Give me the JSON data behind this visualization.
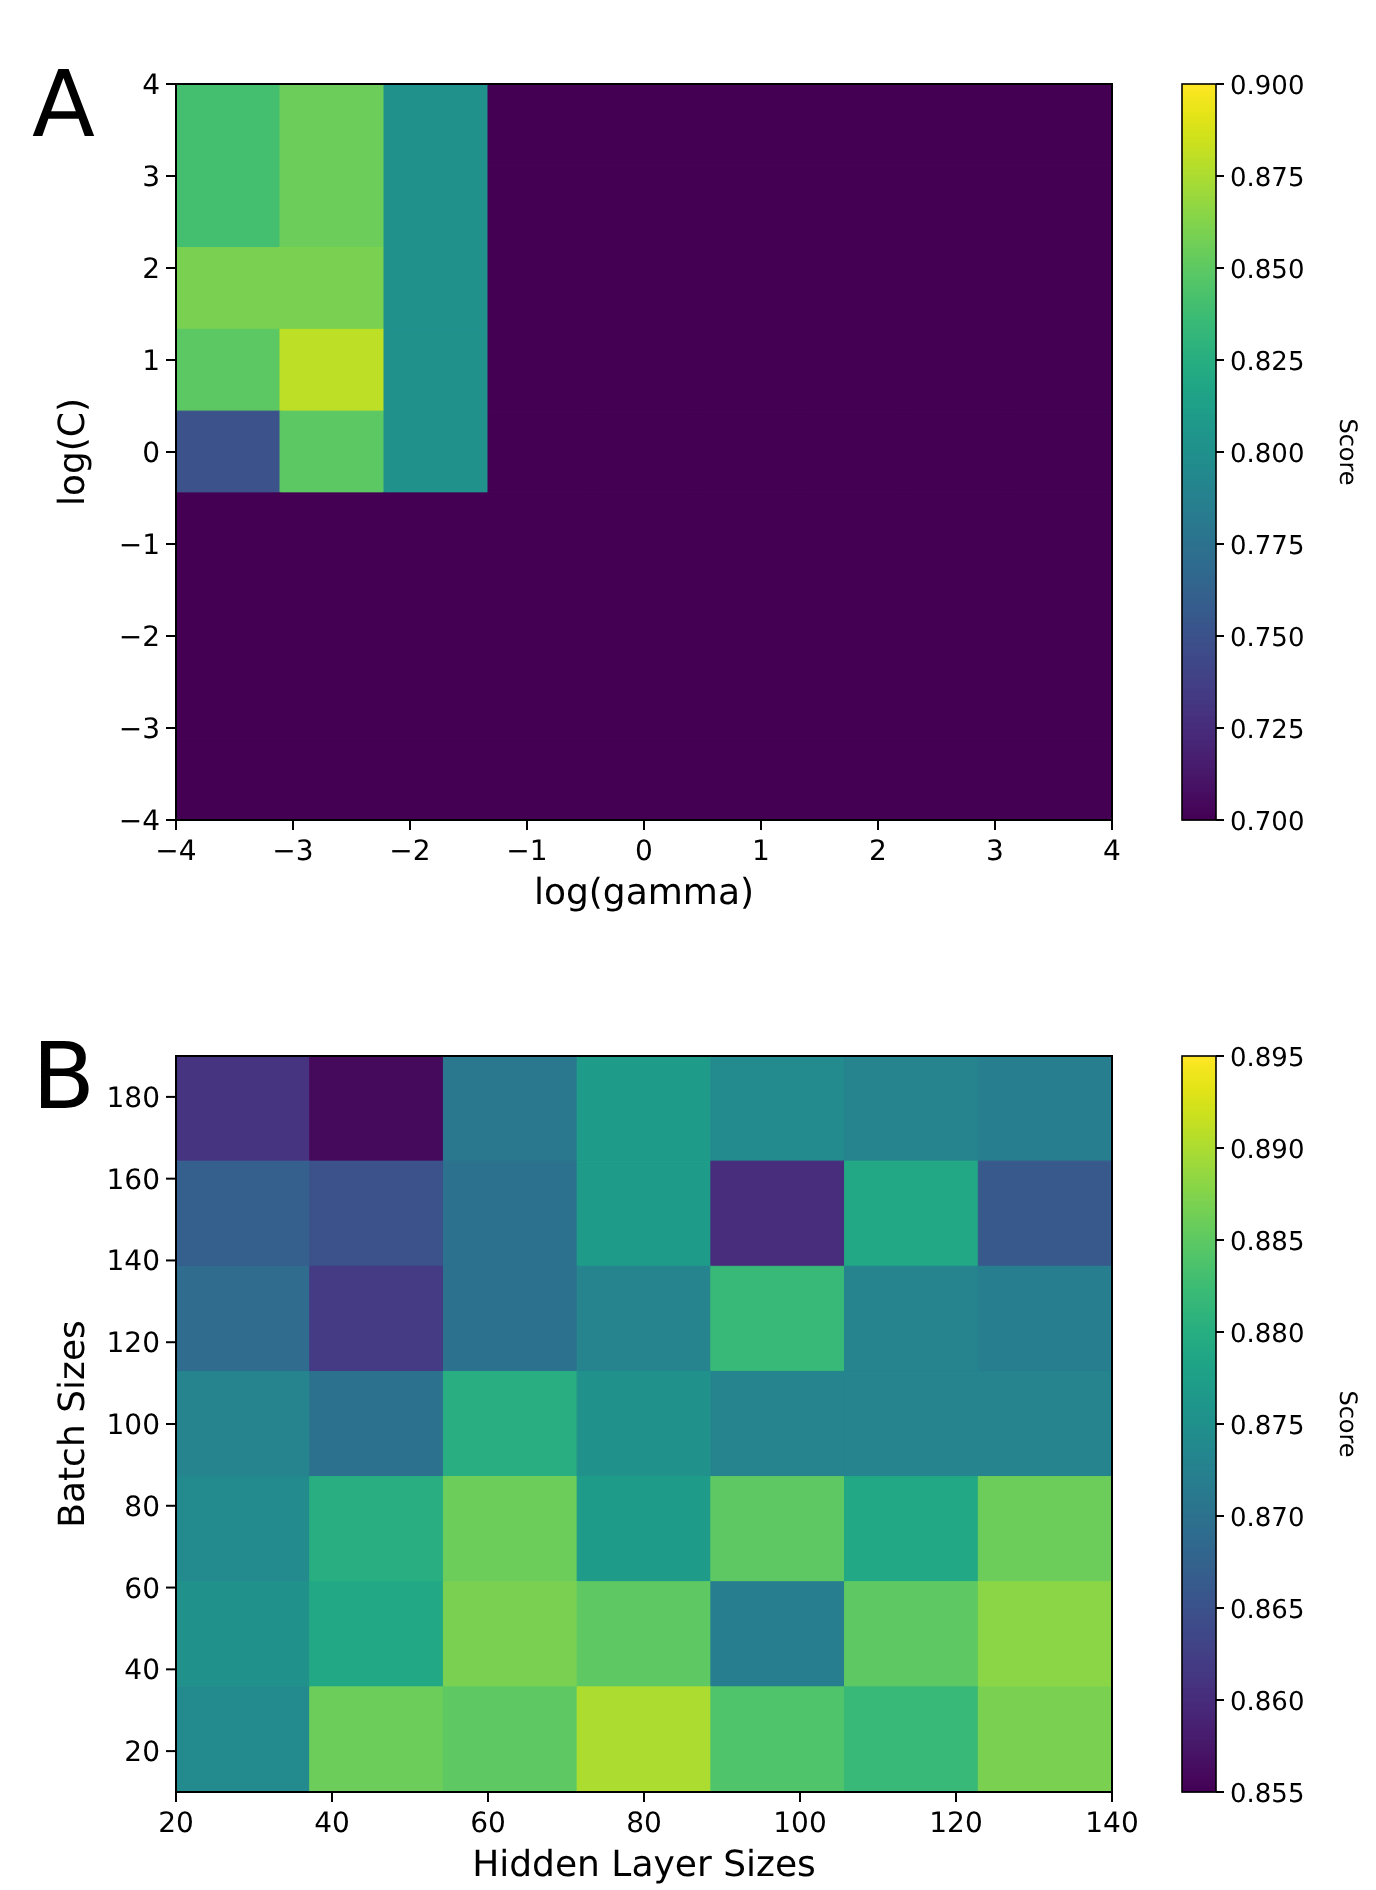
{
  "chart_data": [
    {
      "type": "heatmap",
      "xlabel": "log(gamma)",
      "ylabel": "log(C)",
      "clabel": "Score",
      "annotations": [
        "A"
      ],
      "cells": [
        [
          0.84,
          0.855,
          0.8,
          0.7,
          0.7,
          0.7,
          0.7,
          0.7,
          0.7
        ],
        [
          0.84,
          0.855,
          0.8,
          0.7,
          0.7,
          0.7,
          0.7,
          0.7,
          0.7
        ],
        [
          0.86,
          0.86,
          0.8,
          0.7,
          0.7,
          0.7,
          0.7,
          0.7,
          0.7
        ],
        [
          0.85,
          0.88,
          0.8,
          0.7,
          0.7,
          0.7,
          0.7,
          0.7,
          0.7
        ],
        [
          0.75,
          0.85,
          0.8,
          0.7,
          0.7,
          0.7,
          0.7,
          0.7,
          0.7
        ],
        [
          0.7,
          0.7,
          0.7,
          0.7,
          0.7,
          0.7,
          0.7,
          0.7,
          0.7
        ],
        [
          0.7,
          0.7,
          0.7,
          0.7,
          0.7,
          0.7,
          0.7,
          0.7,
          0.7
        ],
        [
          0.7,
          0.7,
          0.7,
          0.7,
          0.7,
          0.7,
          0.7,
          0.7,
          0.7
        ],
        [
          0.7,
          0.7,
          0.7,
          0.7,
          0.7,
          0.7,
          0.7,
          0.7,
          0.7
        ]
      ],
      "xlim": [
        -4,
        4
      ],
      "ylim": [
        -4,
        4
      ],
      "xticks": [
        {
          "value": -4,
          "label": "−4"
        },
        {
          "value": -3,
          "label": "−3"
        },
        {
          "value": -2,
          "label": "−2"
        },
        {
          "value": -1,
          "label": "−1"
        },
        0,
        1,
        2,
        3,
        4
      ],
      "yticks": [
        {
          "value": -4,
          "label": "−4"
        },
        {
          "value": -3,
          "label": "−3"
        },
        {
          "value": -2,
          "label": "−2"
        },
        {
          "value": -1,
          "label": "−1"
        },
        0,
        1,
        2,
        3,
        4
      ],
      "clim": [
        0.7,
        0.9
      ],
      "cticks": [
        {
          "value": 0.7,
          "label": "0.700"
        },
        0.725,
        {
          "value": 0.75,
          "label": "0.750"
        },
        0.775,
        {
          "value": 0.8,
          "label": "0.800"
        },
        0.825,
        {
          "value": 0.85,
          "label": "0.850"
        },
        0.875,
        {
          "value": 0.9,
          "label": "0.900"
        }
      ]
    },
    {
      "type": "heatmap",
      "xlabel": "Hidden Layer Sizes",
      "ylabel": "Batch Sizes",
      "clabel": "Score",
      "annotations": [
        "B"
      ],
      "cells": [
        [
          0.861,
          0.856,
          0.871,
          0.877,
          0.874,
          0.873,
          0.872
        ],
        [
          0.867,
          0.865,
          0.87,
          0.877,
          0.86,
          0.879,
          0.866
        ],
        [
          0.869,
          0.862,
          0.87,
          0.873,
          0.882,
          0.873,
          0.872
        ],
        [
          0.873,
          0.87,
          0.88,
          0.875,
          0.873,
          0.873,
          0.873
        ],
        [
          0.874,
          0.88,
          0.886,
          0.877,
          0.885,
          0.879,
          0.886
        ],
        [
          0.875,
          0.879,
          0.887,
          0.885,
          0.872,
          0.885,
          0.888
        ],
        [
          0.874,
          0.886,
          0.885,
          0.89,
          0.884,
          0.882,
          0.887
        ]
      ],
      "xlim": [
        20,
        140
      ],
      "ylim": [
        10,
        190
      ],
      "xticks": [
        20,
        40,
        60,
        80,
        100,
        120,
        140
      ],
      "yticks": [
        20,
        40,
        60,
        80,
        100,
        120,
        140,
        160,
        180
      ],
      "clim": [
        0.855,
        0.895
      ],
      "cticks": [
        0.855,
        {
          "value": 0.86,
          "label": "0.860"
        },
        0.865,
        {
          "value": 0.87,
          "label": "0.870"
        },
        0.875,
        {
          "value": 0.88,
          "label": "0.880"
        },
        0.885,
        {
          "value": 0.89,
          "label": "0.890"
        },
        0.895
      ]
    }
  ]
}
